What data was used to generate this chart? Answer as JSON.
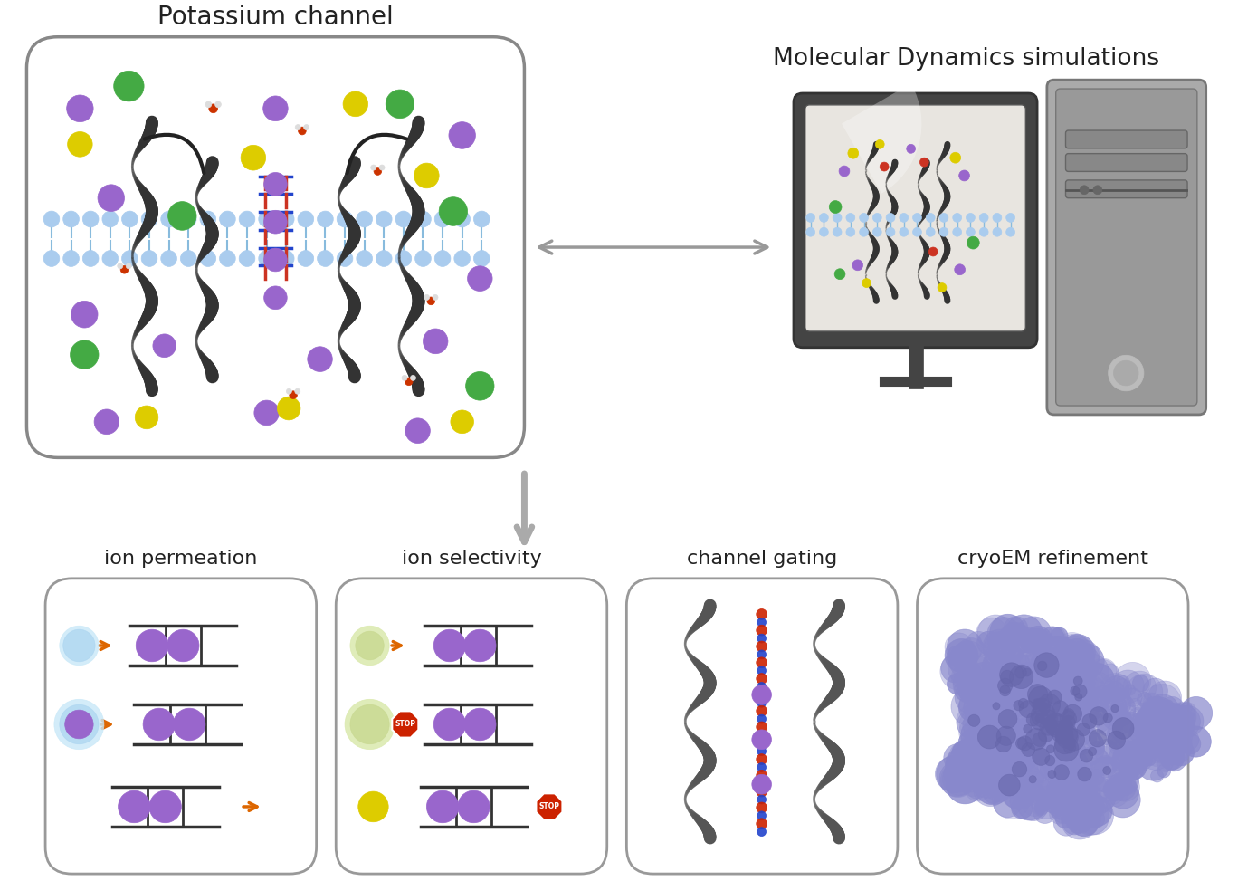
{
  "title_main": "Potassium channel",
  "title_md": "Molecular Dynamics simulations",
  "bg_color": "#ffffff",
  "box_edge_color": "#888888",
  "box_bg": "#ffffff",
  "arrow_color": "#aaaaaa",
  "bottom_labels": [
    "ion permeation",
    "ion selectivity",
    "channel gating",
    "cryoEM refinement"
  ],
  "ion_colors": {
    "purple": "#9966cc",
    "green": "#44aa44",
    "yellow": "#ddcc00",
    "light_blue": "#aaddff",
    "red": "#cc2200",
    "white_water": "#eeeeee"
  },
  "membrane_color": "#aaccee",
  "cryo_color": "#8888cc"
}
